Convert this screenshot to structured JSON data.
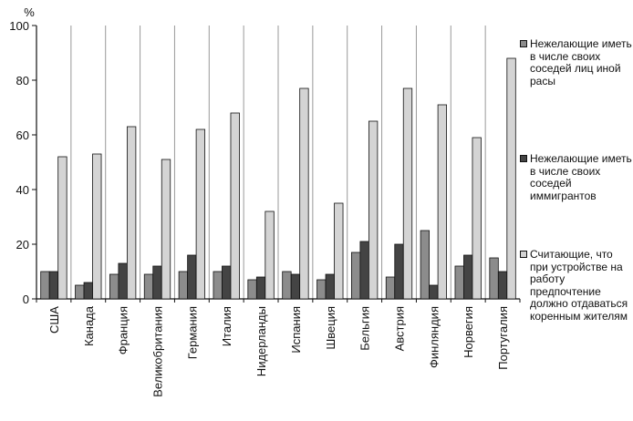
{
  "chart_data": {
    "type": "bar",
    "ylabel": "%",
    "ylim": [
      0,
      100
    ],
    "yticks": [
      "0",
      "20",
      "40",
      "60",
      "80",
      "100"
    ],
    "categories": [
      "США",
      "Канада",
      "Франция",
      "Великобритания",
      "Германия",
      "Италия",
      "Нидерланды",
      "Испания",
      "Швеция",
      "Бельгия",
      "Австрия",
      "Финляндия",
      "Норвегия",
      "Португалия"
    ],
    "series": [
      {
        "name": "Нежелающие иметь в числе своих соседей лиц иной расы",
        "color": "#8c8c8c",
        "values": [
          10,
          5,
          9,
          9,
          10,
          10,
          7,
          10,
          7,
          17,
          8,
          25,
          12,
          15
        ]
      },
      {
        "name": "Нежелающие иметь в числе своих соседей иммигрантов",
        "color": "#444444",
        "values": [
          10,
          6,
          13,
          12,
          16,
          12,
          8,
          9,
          9,
          21,
          20,
          5,
          16,
          10
        ]
      },
      {
        "name": "Считающие, что при устройстве на работу предпочтение должно отдаваться коренным жителям",
        "color": "#d4d4d4",
        "values": [
          52,
          53,
          63,
          51,
          62,
          68,
          32,
          77,
          35,
          65,
          77,
          71,
          59,
          88
        ]
      }
    ],
    "legend_position": "right",
    "grid": false
  }
}
